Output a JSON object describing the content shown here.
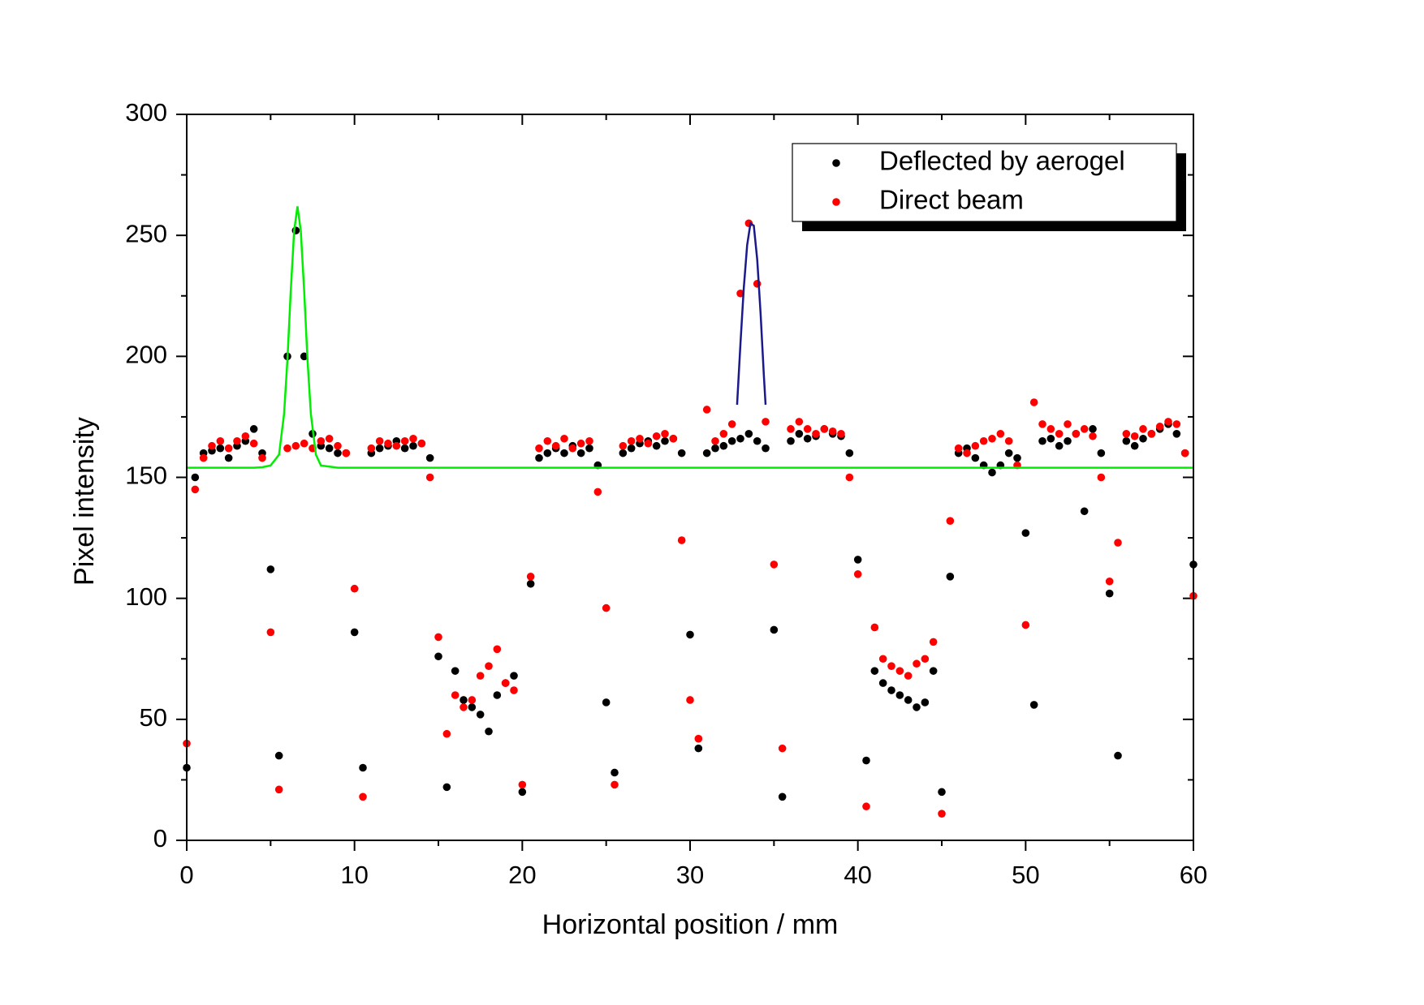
{
  "chart_data": {
    "type": "scatter",
    "xlabel": "Horizontal position / mm",
    "ylabel": "Pixel intensity",
    "xlim": [
      0,
      60
    ],
    "ylim": [
      0,
      300
    ],
    "xticks": [
      0,
      10,
      20,
      30,
      40,
      50,
      60
    ],
    "yticks": [
      0,
      50,
      100,
      150,
      200,
      250,
      300
    ],
    "xminorticks": [
      5,
      15,
      25,
      35,
      45,
      55
    ],
    "yminorticks": [
      25,
      75,
      125,
      175,
      225,
      275
    ],
    "legend": "upper right",
    "x": [
      0,
      0.5,
      1,
      1.5,
      2,
      2.5,
      3,
      3.5,
      4,
      4.5,
      5,
      5.5,
      6,
      6.5,
      7,
      7.5,
      8,
      8.5,
      9,
      9.5,
      10,
      10.5,
      11,
      11.5,
      12,
      12.5,
      13,
      13.5,
      14,
      14.5,
      15,
      15.5,
      16,
      16.5,
      17,
      17.5,
      18,
      18.5,
      19,
      19.5,
      20,
      20.5,
      21,
      21.5,
      22,
      22.5,
      23,
      23.5,
      24,
      24.5,
      25,
      25.5,
      26,
      26.5,
      27,
      27.5,
      28,
      28.5,
      29,
      29.5,
      30,
      30.5,
      31,
      31.5,
      32,
      32.5,
      33,
      33.5,
      34,
      34.5,
      35,
      35.5,
      36,
      36.5,
      37,
      37.5,
      38,
      38.5,
      39,
      39.5,
      40,
      40.5,
      41,
      41.5,
      42,
      42.5,
      43,
      43.5,
      44,
      44.5,
      45,
      45.5,
      46,
      46.5,
      47,
      47.5,
      48,
      48.5,
      49,
      49.5,
      50,
      50.5,
      51,
      51.5,
      52,
      52.5,
      53,
      53.5,
      54,
      54.5,
      55,
      55.5,
      56,
      56.5,
      57,
      57.5,
      58,
      58.5,
      59,
      59.5,
      60
    ],
    "series": [
      {
        "name": "Deflected by aerogel",
        "color": "#000000",
        "values": [
          30,
          150,
          160,
          161,
          162,
          158,
          163,
          165,
          170,
          160,
          112,
          35,
          200,
          252,
          200,
          168,
          163,
          162,
          160,
          160,
          86,
          30,
          160,
          162,
          163,
          165,
          162,
          163,
          164,
          158,
          76,
          22,
          70,
          58,
          55,
          52,
          45,
          60,
          65,
          68,
          20,
          106,
          158,
          160,
          162,
          160,
          163,
          160,
          162,
          155,
          57,
          28,
          160,
          162,
          164,
          165,
          163,
          165,
          166,
          160,
          85,
          38,
          160,
          162,
          163,
          165,
          166,
          168,
          165,
          162,
          87,
          18,
          165,
          168,
          166,
          167,
          170,
          168,
          167,
          160,
          116,
          33,
          70,
          65,
          62,
          60,
          58,
          55,
          57,
          70,
          20,
          109,
          160,
          162,
          158,
          155,
          152,
          155,
          160,
          158,
          127,
          56,
          165,
          166,
          163,
          165,
          168,
          136,
          170,
          160,
          102,
          35,
          165,
          163,
          166,
          168,
          170,
          172,
          168,
          160,
          114
        ]
      },
      {
        "name": "Direct beam",
        "color": "#ff0000",
        "values": [
          40,
          145,
          158,
          163,
          165,
          162,
          165,
          167,
          164,
          158,
          86,
          21,
          162,
          163,
          164,
          162,
          165,
          166,
          163,
          160,
          104,
          18,
          162,
          165,
          164,
          163,
          165,
          166,
          164,
          150,
          84,
          44,
          60,
          55,
          58,
          68,
          72,
          79,
          65,
          62,
          23,
          109,
          162,
          165,
          163,
          166,
          162,
          164,
          165,
          144,
          96,
          23,
          163,
          165,
          166,
          164,
          167,
          168,
          166,
          124,
          58,
          42,
          178,
          165,
          168,
          172,
          226,
          255,
          230,
          173,
          114,
          38,
          170,
          173,
          170,
          168,
          170,
          169,
          168,
          150,
          110,
          14,
          88,
          75,
          72,
          70,
          68,
          73,
          75,
          82,
          11,
          132,
          162,
          160,
          163,
          165,
          166,
          168,
          165,
          155,
          89,
          181,
          172,
          170,
          168,
          172,
          168,
          170,
          167,
          150,
          107,
          123,
          168,
          167,
          170,
          168,
          171,
          173,
          172,
          160,
          101
        ]
      }
    ],
    "curves": [
      {
        "color": "#00ee00",
        "x": [
          0,
          4,
          4.5,
          5,
          5.5,
          5.8,
          6,
          6.2,
          6.4,
          6.6,
          6.8,
          7,
          7.2,
          7.4,
          7.7,
          8,
          9,
          60
        ],
        "values": [
          154,
          154,
          154.2,
          154.9,
          159.4,
          176.2,
          198.4,
          226.8,
          251.8,
          262,
          251.8,
          226.8,
          198.4,
          176.2,
          159.4,
          154.9,
          154,
          154
        ]
      },
      {
        "color": "#1a1a8c",
        "x": [
          32.8,
          33,
          33.2,
          33.4,
          33.6,
          33.8,
          34,
          34.2,
          34.4,
          34.5
        ],
        "values": [
          180,
          205,
          228,
          246,
          255,
          254,
          240,
          218,
          192,
          180
        ]
      }
    ]
  }
}
